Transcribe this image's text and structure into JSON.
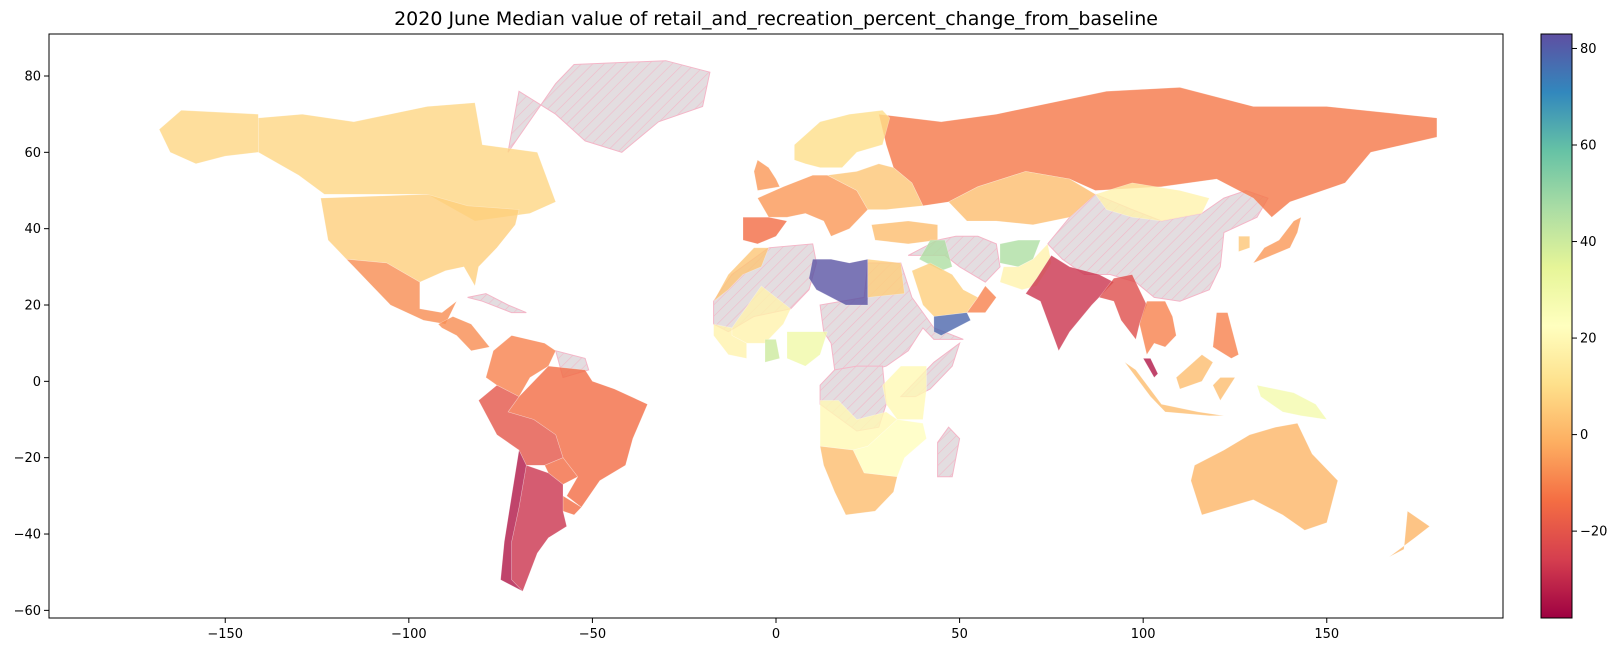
{
  "chart_data": {
    "type": "choropleth",
    "title": "2020 June Median value of retail_and_recreation_percent_change_from_baseline",
    "xlim": [
      -198,
      198
    ],
    "ylim": [
      -62,
      91
    ],
    "x_ticks": [
      -150,
      -100,
      -50,
      0,
      50,
      100,
      150
    ],
    "y_ticks": [
      -60,
      -40,
      -20,
      0,
      20,
      40,
      60,
      80
    ],
    "colorbar": {
      "cmap": "Spectral",
      "range": [
        -38,
        83
      ],
      "ticks": [
        -20,
        0,
        20,
        40,
        60,
        80
      ]
    },
    "no_data_style": "hatched-grey",
    "regions": [
      {
        "name": "Canada",
        "value": 8
      },
      {
        "name": "United States",
        "value": 6
      },
      {
        "name": "Alaska",
        "value": 8
      },
      {
        "name": "Mexico",
        "value": -8
      },
      {
        "name": "Central America",
        "value": -8
      },
      {
        "name": "Colombia/Venezuela",
        "value": -10
      },
      {
        "name": "Brazil",
        "value": -14
      },
      {
        "name": "Peru/Bolivia",
        "value": -20
      },
      {
        "name": "Paraguay",
        "value": -14
      },
      {
        "name": "Uruguay",
        "value": -14
      },
      {
        "name": "Argentina",
        "value": -28
      },
      {
        "name": "Chile",
        "value": -34
      },
      {
        "name": "Russia",
        "value": -12
      },
      {
        "name": "Kazakhstan",
        "value": 2
      },
      {
        "name": "Mongolia",
        "value": 18
      },
      {
        "name": "Europe West",
        "value": -6
      },
      {
        "name": "Spain/Portugal",
        "value": -14
      },
      {
        "name": "Scandinavia",
        "value": 10
      },
      {
        "name": "Eastern Europe",
        "value": 4
      },
      {
        "name": "Turkey",
        "value": 2
      },
      {
        "name": "Iraq",
        "value": 46
      },
      {
        "name": "Afghanistan",
        "value": 46
      },
      {
        "name": "Saudi Arabia",
        "value": 6
      },
      {
        "name": "Yemen",
        "value": 78
      },
      {
        "name": "Oman",
        "value": -10
      },
      {
        "name": "Libya",
        "value": 82
      },
      {
        "name": "Egypt",
        "value": 6
      },
      {
        "name": "Morocco/Algeria coast",
        "value": 4
      },
      {
        "name": "Mali/Burkina",
        "value": 18
      },
      {
        "name": "Ghana",
        "value": 40
      },
      {
        "name": "Nigeria",
        "value": 30
      },
      {
        "name": "Kenya/Tanzania",
        "value": 20
      },
      {
        "name": "Angola/Zambia",
        "value": 20
      },
      {
        "name": "Namibia/Botswana/South Africa",
        "value": 2
      },
      {
        "name": "Mozambique/Zimbabwe",
        "value": 22
      },
      {
        "name": "India",
        "value": -28
      },
      {
        "name": "Pakistan",
        "value": 18
      },
      {
        "name": "Myanmar/Bangladesh",
        "value": -22
      },
      {
        "name": "Thailand/Vietnam",
        "value": -10
      },
      {
        "name": "Malaysia",
        "value": -34
      },
      {
        "name": "Indonesia",
        "value": 2
      },
      {
        "name": "Philippines",
        "value": -10
      },
      {
        "name": "Japan",
        "value": -6
      },
      {
        "name": "South Korea",
        "value": 4
      },
      {
        "name": "Papua New Guinea",
        "value": 28
      },
      {
        "name": "Australia",
        "value": 0
      },
      {
        "name": "New Zealand",
        "value": 0
      }
    ]
  }
}
